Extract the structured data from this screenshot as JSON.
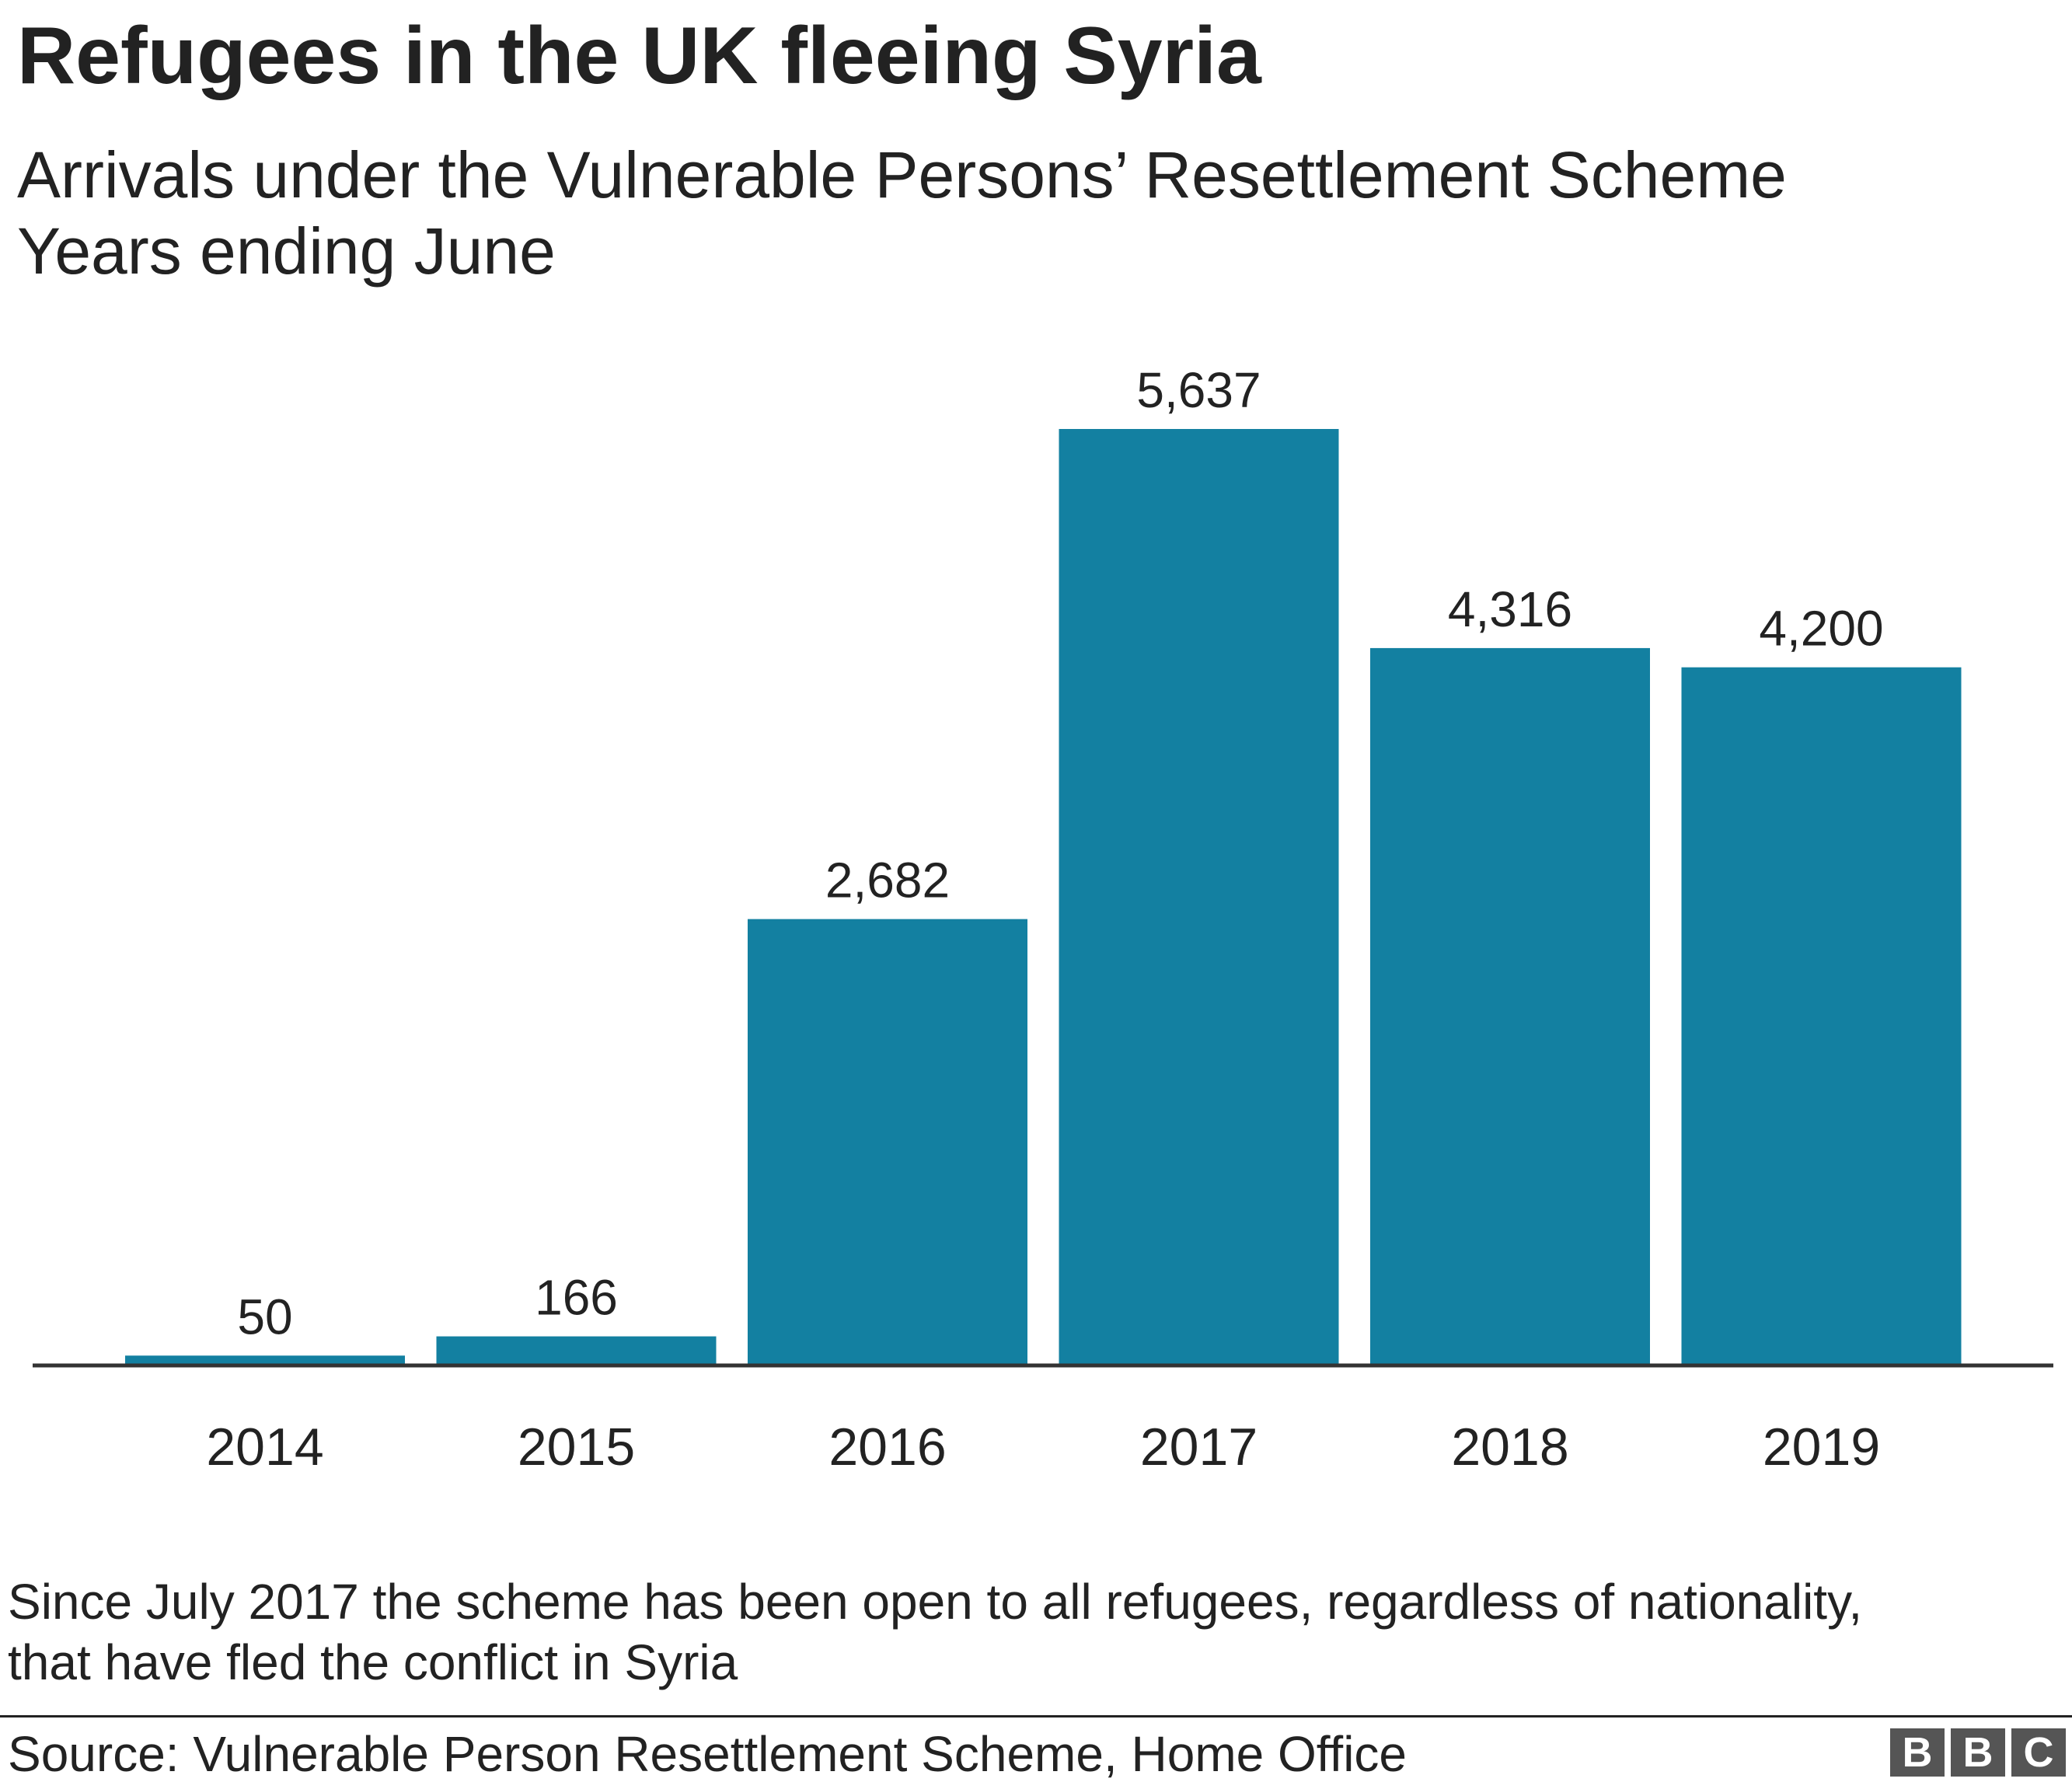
{
  "header": {
    "title": "Refugees in the UK fleeing Syria",
    "subtitle_line1": "Arrivals under the Vulnerable Persons’ Resettlement Scheme",
    "subtitle_line2": "Years ending June"
  },
  "chart_data": {
    "type": "bar",
    "title": "Refugees in the UK fleeing Syria",
    "subtitle": "Arrivals under the Vulnerable Persons’ Resettlement Scheme",
    "xlabel": "Years ending June",
    "ylabel": "",
    "categories": [
      "2014",
      "2015",
      "2016",
      "2017",
      "2018",
      "2019"
    ],
    "values": [
      50,
      166,
      2682,
      5637,
      4316,
      4200
    ],
    "value_labels": [
      "50",
      "166",
      "2,682",
      "5,637",
      "4,316",
      "4,200"
    ],
    "ylim": [
      0,
      5637
    ],
    "grid": false,
    "legend": "none",
    "bar_color": "#1380A1",
    "axis_color": "#333333"
  },
  "notes": {
    "footnote_line1": "Since July 2017 the scheme has been open to all refugees, regardless of nationality,",
    "footnote_line2": "that have fled the conflict in Syria"
  },
  "footer": {
    "source": "Source: Vulnerable Person Resettlement Scheme, Home Office",
    "logo_letters": [
      "B",
      "B",
      "C"
    ]
  }
}
